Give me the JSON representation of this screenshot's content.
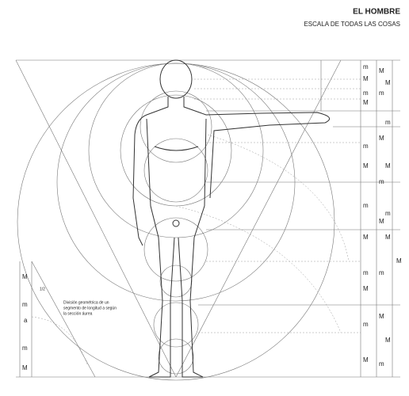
{
  "header": {
    "title": "EL HOMBRE",
    "subtitle": "ESCALA DE TODAS LAS COSAS"
  },
  "note": {
    "lines": [
      "División geométrica de un",
      "segmento de longitud a según",
      "la sección áurea"
    ]
  },
  "scale_a": [
    "m",
    "M",
    "m",
    "M",
    "m",
    "M",
    "m",
    "M",
    "m",
    "M",
    "m",
    "M"
  ],
  "scale_b": [
    "M",
    "m",
    "M",
    "m",
    "M",
    "m",
    "M",
    "m"
  ],
  "scale_c": [
    "M",
    "m",
    "M",
    "m",
    "M",
    "M"
  ],
  "scale_d": [
    "M"
  ],
  "inset": {
    "labels": [
      "M",
      "m",
      "a",
      "m",
      "M",
      "1/2"
    ]
  }
}
